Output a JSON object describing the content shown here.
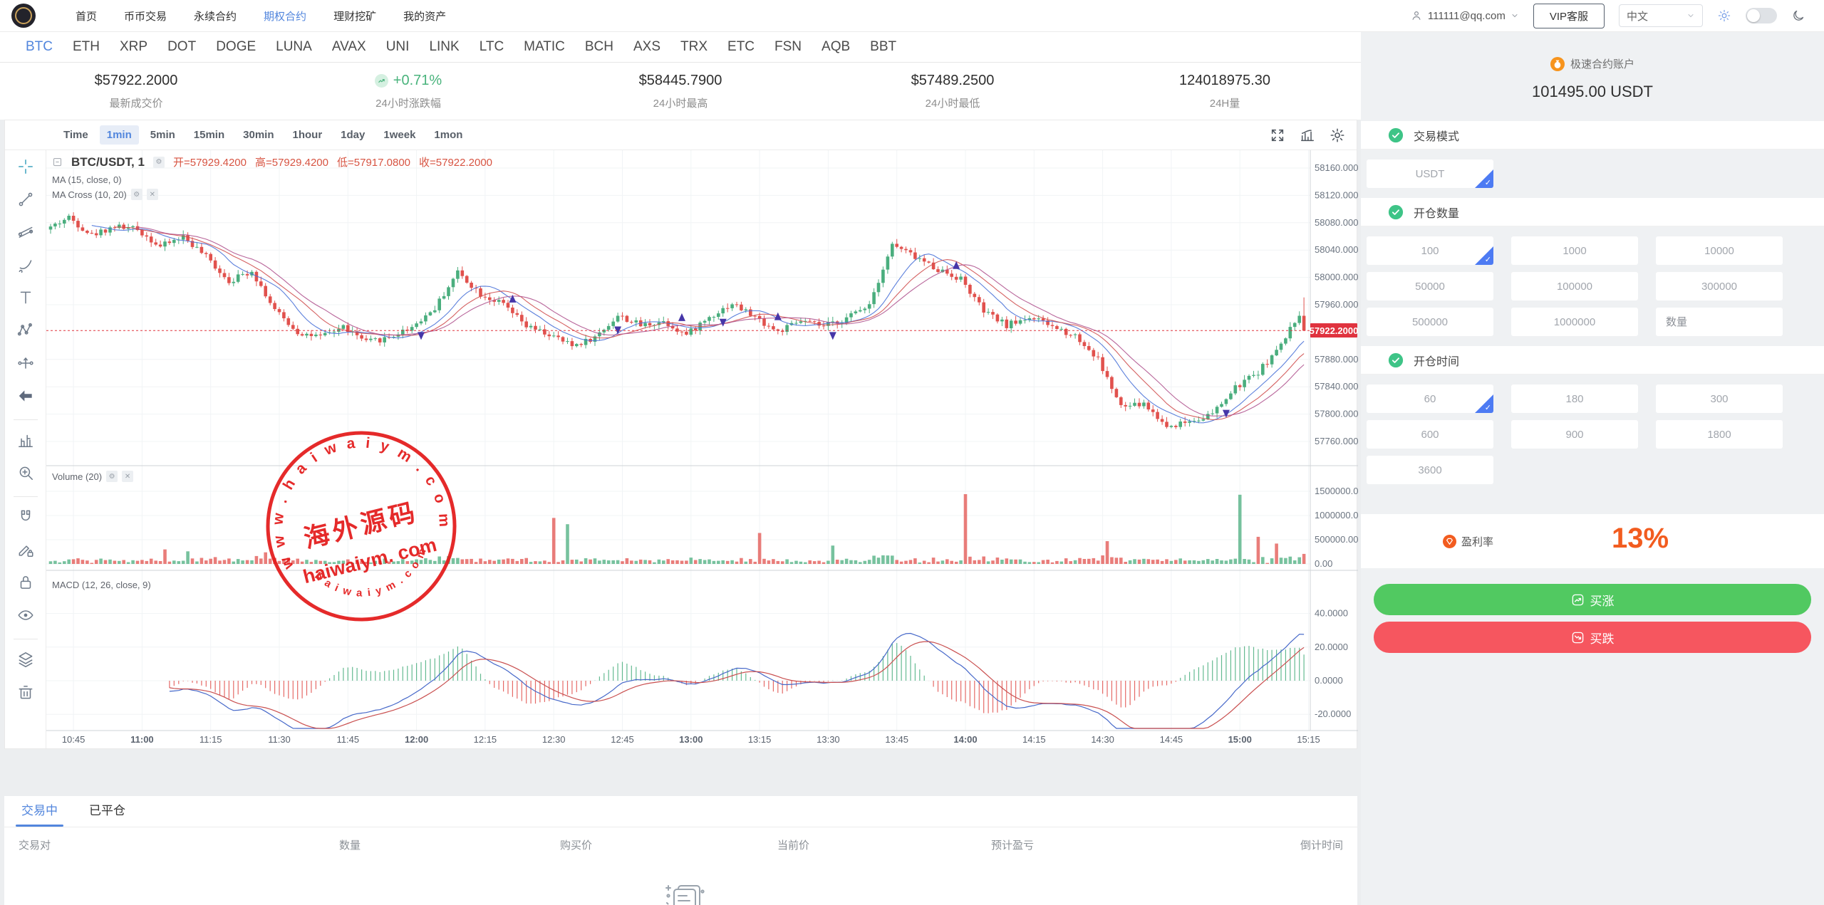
{
  "colors": {
    "accent_blue": "#5286dd",
    "up_green": "#4aae7e",
    "down_red": "#e1514d",
    "button_green": "#51c961",
    "button_red": "#f6565f",
    "orange": "#f25c1f",
    "price_tag_red": "#e0333f",
    "watermark_red": "#e31919"
  },
  "navbar": {
    "menu": [
      "首页",
      "币币交易",
      "永续合约",
      "期权合约",
      "理财挖矿",
      "我的资产"
    ],
    "active_menu": "期权合约",
    "user_email": "111111@qq.com",
    "vip_button": "VIP客服",
    "language": "中文"
  },
  "coin_tabs": {
    "active": "BTC",
    "items": [
      "BTC",
      "ETH",
      "XRP",
      "DOT",
      "DOGE",
      "LUNA",
      "AVAX",
      "UNI",
      "LINK",
      "LTC",
      "MATIC",
      "BCH",
      "AXS",
      "TRX",
      "ETC",
      "FSN",
      "AQB",
      "BBT"
    ]
  },
  "stats": [
    {
      "value": "$57922.2000",
      "label": "最新成交价",
      "type": "plain"
    },
    {
      "value": "+0.71%",
      "label": "24小时涨跌幅",
      "type": "up"
    },
    {
      "value": "$58445.7900",
      "label": "24小时最高",
      "type": "plain"
    },
    {
      "value": "$57489.2500",
      "label": "24小时最低",
      "type": "plain"
    },
    {
      "value": "124018975.30",
      "label": "24H量",
      "type": "plain"
    }
  ],
  "chart_toolbar": {
    "intervals": [
      "Time",
      "1min",
      "5min",
      "15min",
      "30min",
      "1hour",
      "1day",
      "1week",
      "1mon"
    ],
    "active": "1min"
  },
  "drawing_toolbar": [
    "crosshair",
    "trend-line",
    "fib-lines",
    "brush",
    "text",
    "xabcd-pattern",
    "forecast",
    "arrow-left",
    "bar-settings",
    "zoom-in",
    "magnet",
    "draw-lock",
    "lock",
    "eye",
    "layers",
    "trash"
  ],
  "legend": {
    "symbol": "BTC/USDT, 1",
    "open_label": "开=57929.4200",
    "high_label": "高=57929.4200",
    "low_label": "低=57917.0800",
    "close_label": "收=57922.2000",
    "ma": "MA (15, close, 0)",
    "ma_cross": "MA Cross (10, 20)",
    "volume": "Volume (20)",
    "macd": "MACD (12, 26, close, 9)"
  },
  "watermark": {
    "arc_text": "w w w . h a i w a i y m . c o m",
    "center_cn": "海外源码",
    "center_en": "haiwaiym. com",
    "bottom_arc": "h a i w a i y m . c o m"
  },
  "chart_data": {
    "type": "candlestick",
    "symbol": "BTC/USDT",
    "interval": "1min",
    "last_price": 57922.2,
    "last_price_label": "57922.2000",
    "ylim": [
      57725,
      58185
    ],
    "y_axis_labels": [
      "58160.0000",
      "58120.0000",
      "58080.0000",
      "58040.0000",
      "58000.0000",
      "57960.0000",
      "57880.0000",
      "57840.0000",
      "57800.0000",
      "57760.0000"
    ],
    "y_axis_values": [
      58160,
      58120,
      58080,
      58040,
      58000,
      57960,
      57880,
      57840,
      57800,
      57760
    ],
    "x_axis_labels": [
      "10:45",
      "11:00",
      "11:15",
      "11:30",
      "11:45",
      "12:00",
      "12:15",
      "12:30",
      "12:45",
      "13:00",
      "13:15",
      "13:30",
      "13:45",
      "14:00",
      "14:15",
      "14:30",
      "14:45",
      "15:00",
      "15:15"
    ],
    "volume_axis": [
      [
        "1500000.00",
        1500000
      ],
      [
        "1000000.00",
        1000000
      ],
      [
        "500000.00",
        500000
      ],
      [
        "0.00",
        0
      ]
    ],
    "macd_axis": [
      [
        "40.0000",
        40
      ],
      [
        "20.0000",
        20
      ],
      [
        "0.0000",
        0
      ],
      [
        "-20.0000",
        -20
      ]
    ],
    "close_keypoints": [
      58070,
      58088,
      58062,
      58075,
      58070,
      58045,
      58060,
      58030,
      57995,
      58010,
      57952,
      57920,
      57912,
      57928,
      57905,
      57912,
      57928,
      57955,
      58008,
      57976,
      57960,
      57928,
      57916,
      57900,
      57912,
      57944,
      57930,
      57936,
      57916,
      57942,
      57962,
      57942,
      57920,
      57936,
      57928,
      57940,
      57962,
      58048,
      58030,
      58012,
      57998,
      57950,
      57930,
      57942,
      57928,
      57915,
      57880,
      57810,
      57815,
      57782,
      57790,
      57800,
      57838,
      57862,
      57900,
      57960
    ],
    "candles_per_keypoint": 5,
    "volume_spikes": [
      [
        25,
        300000,
        "r"
      ],
      [
        30,
        260000,
        "g"
      ],
      [
        47,
        240000,
        "r"
      ],
      [
        110,
        950000,
        "r"
      ],
      [
        113,
        820000,
        "g"
      ],
      [
        155,
        640000,
        "r"
      ],
      [
        171,
        380000,
        "g"
      ],
      [
        200,
        1450000,
        "r"
      ],
      [
        231,
        470000,
        "r"
      ],
      [
        260,
        1430000,
        "g"
      ],
      [
        264,
        560000,
        "r"
      ],
      [
        268,
        420000,
        "r"
      ]
    ],
    "indicators": {
      "ma": [
        10,
        15,
        20
      ],
      "macd_params": [
        12,
        26,
        9
      ]
    }
  },
  "panel": {
    "account_label": "极速合约账户",
    "balance": "101495.00 USDT",
    "mode_title": "交易模式",
    "mode_options": [
      "USDT"
    ],
    "mode_active": "USDT",
    "amount_title": "开仓数量",
    "amounts": [
      "100",
      "1000",
      "10000",
      "50000",
      "100000",
      "300000",
      "500000",
      "1000000"
    ],
    "amount_active": "100",
    "amount_placeholder": "数量",
    "time_title": "开仓时间",
    "times": [
      "60",
      "180",
      "300",
      "600",
      "900",
      "1800",
      "3600"
    ],
    "time_active": "60",
    "profit_label": "盈利率",
    "profit_value": "13%",
    "buy_up": "买涨",
    "buy_down": "买跌"
  },
  "bottom": {
    "tabs": [
      "交易中",
      "已平仓"
    ],
    "active_tab": "交易中",
    "columns": [
      "交易对",
      "数量",
      "购买价",
      "当前价",
      "预计盈亏",
      "倒计时间"
    ],
    "rows": []
  }
}
